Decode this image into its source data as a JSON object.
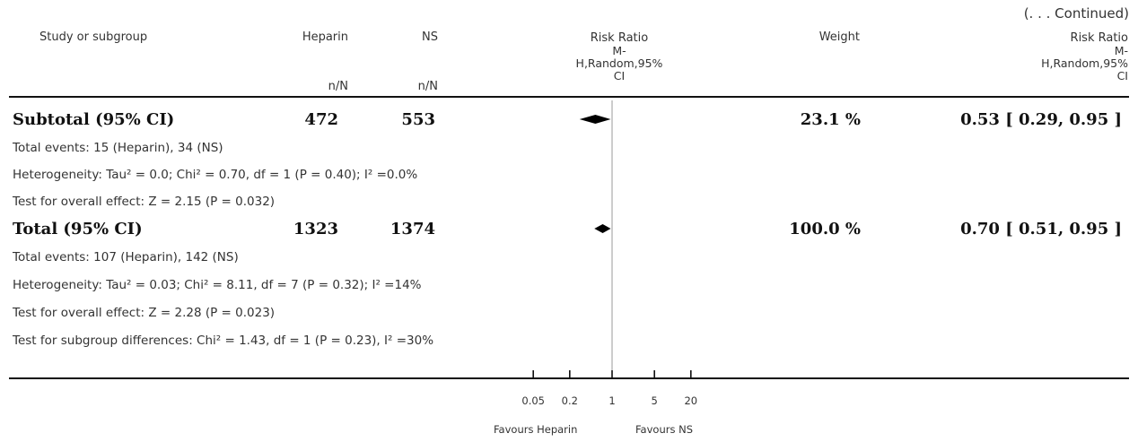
{
  "continued": "(. . . Continued)",
  "headers": {
    "study": "Study or subgroup",
    "heparin": "Heparin",
    "ns": "NS",
    "heparin_sub": "n/N",
    "ns_sub": "n/N",
    "rr_plot": [
      "Risk Ratio",
      "M-",
      "H,Random,95%",
      "CI"
    ],
    "weight": "Weight",
    "rr_text": [
      "Risk Ratio",
      "M-",
      "H,Random,95%",
      "CI"
    ]
  },
  "subtotal": {
    "label": "Subtotal (95% CI)",
    "heparin": "472",
    "ns": "553",
    "weight": "23.1 %",
    "rr": "0.53 [ 0.29, 0.95 ]",
    "events": "Total events: 15 (Heparin), 34 (NS)",
    "heterogeneity": "Heterogeneity: Tau² = 0.0; Chi² = 0.70, df = 1 (P = 0.40); I² =0.0%",
    "overall": "Test for overall effect: Z = 2.15 (P = 0.032)"
  },
  "total": {
    "label": "Total (95% CI)",
    "heparin": "1323",
    "ns": "1374",
    "weight": "100.0 %",
    "rr": "0.70 [ 0.51, 0.95 ]",
    "events": "Total events: 107 (Heparin), 142 (NS)",
    "heterogeneity": "Heterogeneity: Tau² = 0.03; Chi² = 8.11, df = 7 (P = 0.32); I² =14%",
    "overall": "Test for overall effect: Z = 2.28 (P = 0.023)",
    "subgroup": "Test for subgroup differences: Chi² = 1.43, df = 1 (P = 0.23), I² =30%"
  },
  "axis": {
    "favours_left": "Favours Heparin",
    "favours_right": "Favours NS"
  },
  "chart_data": {
    "type": "forest",
    "scale": "log",
    "xlim": [
      0.05,
      20
    ],
    "ticks": [
      0.05,
      0.2,
      1,
      5,
      20
    ],
    "tick_labels": [
      "0.05",
      "0.2",
      "1",
      "5",
      "20"
    ],
    "null_line": 1,
    "rows": [
      {
        "label": "Subtotal (95% CI)",
        "estimate": 0.53,
        "lower": 0.29,
        "upper": 0.95
      },
      {
        "label": "Total (95% CI)",
        "estimate": 0.7,
        "lower": 0.51,
        "upper": 0.95
      }
    ],
    "colors": {
      "diamond": "#000000",
      "axis": "#000000",
      "null_line": "#999999"
    }
  }
}
